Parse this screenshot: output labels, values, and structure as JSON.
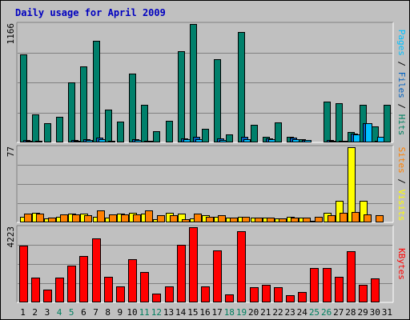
{
  "chart_data": {
    "type": "bar",
    "title": "Daily usage for April 2009",
    "categories": [
      "1",
      "2",
      "3",
      "4",
      "5",
      "6",
      "7",
      "8",
      "9",
      "10",
      "11",
      "12",
      "13",
      "14",
      "15",
      "16",
      "17",
      "18",
      "19",
      "20",
      "21",
      "22",
      "23",
      "24",
      "25",
      "26",
      "27",
      "28",
      "29",
      "30",
      "31"
    ],
    "weekend_days": [
      "4",
      "5",
      "11",
      "12",
      "18",
      "19",
      "25",
      "26"
    ],
    "panels": [
      {
        "id": "hits",
        "ymax_label": "1166",
        "ymax": 1166,
        "ylabel_parts": [
          {
            "text": "Pages",
            "color": "#00c0ff"
          },
          {
            "text": " / ",
            "color": "#000000"
          },
          {
            "text": "Files",
            "color": "#0060c0"
          },
          {
            "text": " / ",
            "color": "#000000"
          },
          {
            "text": "Hits",
            "color": "#008060"
          }
        ],
        "series": [
          {
            "name": "Hits",
            "color": "#00806b",
            "values": [
              864,
              278,
              190,
              256,
              594,
              748,
              1000,
              325,
              202,
              675,
              373,
              108,
              209,
              900,
              1166,
              137,
              818,
              77,
              1088,
              175,
              52,
              194,
              52,
              28,
              0,
              403,
              384,
              103,
              373,
              156,
              370
            ]
          },
          {
            "name": "Files",
            "color": "#0060c0",
            "values": [
              22,
              12,
              8,
              11,
              27,
              34,
              48,
              14,
              10,
              31,
              17,
              5,
              10,
              42,
              54,
              6,
              39,
              3,
              52,
              8,
              40,
              11,
              45,
              25,
              0,
              20,
              18,
              90,
              190,
              15,
              0
            ]
          },
          {
            "name": "Pages",
            "color": "#00c0ff",
            "values": [
              15,
              8,
              6,
              8,
              18,
              22,
              30,
              10,
              7,
              20,
              12,
              4,
              7,
              28,
              35,
              4,
              26,
              2,
              33,
              5,
              30,
              8,
              30,
              20,
              0,
              13,
              12,
              80,
              190,
              55,
              0
            ]
          }
        ]
      },
      {
        "id": "visits",
        "ymax_label": "77",
        "ymax": 77,
        "ylabel_parts": [
          {
            "text": "Sites",
            "color": "#ff8000"
          },
          {
            "text": " / ",
            "color": "#000000"
          },
          {
            "text": "Visits",
            "color": "#ffff00"
          }
        ],
        "series": [
          {
            "name": "Visits",
            "color": "#ffff00",
            "values": [
              6,
              10,
              4,
              6,
              9,
              9,
              6,
              5,
              9,
              10,
              9,
              3,
              10,
              9,
              4,
              7,
              6,
              5,
              6,
              5,
              5,
              4,
              6,
              5,
              2,
              10,
              22,
              77,
              22,
              0,
              0
            ]
          },
          {
            "name": "Sites",
            "color": "#ff8000",
            "values": [
              9,
              9,
              5,
              8,
              8,
              7,
              12,
              8,
              8,
              8,
              12,
              7,
              7,
              3,
              9,
              6,
              7,
              5,
              6,
              5,
              5,
              4,
              5,
              5,
              6,
              7,
              10,
              11,
              8,
              7,
              0
            ]
          }
        ]
      },
      {
        "id": "kbytes",
        "ymax_label": "4223",
        "ymax": 4223,
        "ylabel_parts": [
          {
            "text": "KBytes",
            "color": "#ff0000"
          }
        ],
        "series": [
          {
            "name": "KBytes",
            "color": "#ff0000",
            "values": [
              3190,
              1400,
              700,
              1400,
              2050,
              2600,
              3600,
              1450,
              900,
              2440,
              1700,
              500,
              900,
              3240,
              4223,
              880,
              2930,
              450,
              3980,
              850,
              1000,
              850,
              400,
              600,
              1950,
              1950,
              1450,
              2880,
              1000,
              1350,
              0
            ]
          }
        ]
      }
    ]
  }
}
